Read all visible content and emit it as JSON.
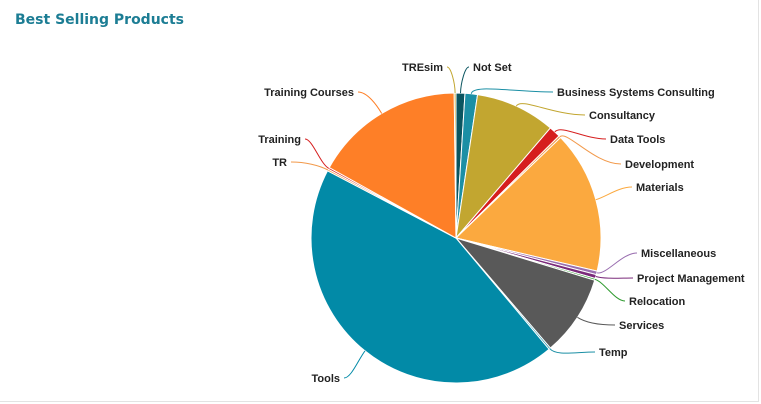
{
  "widget": {
    "title": "Best Selling Products"
  },
  "chart_data": {
    "type": "pie",
    "title": "Best Selling Products",
    "start_angle_deg": 0,
    "slices": [
      {
        "label": "Not Set",
        "value": 1.0,
        "color": "#0a5560"
      },
      {
        "label": "Business Systems Consulting",
        "value": 1.4,
        "color": "#1b8fa5"
      },
      {
        "label": "Consultancy",
        "value": 9.0,
        "color": "#c2a630"
      },
      {
        "label": "Data Tools",
        "value": 1.3,
        "color": "#d61e1e"
      },
      {
        "label": "Development",
        "value": 0.25,
        "color": "#f2994a"
      },
      {
        "label": "Materials",
        "value": 16.0,
        "color": "#fba93f"
      },
      {
        "label": "Miscellaneous",
        "value": 0.4,
        "color": "#9a6fb0"
      },
      {
        "label": "Project Management",
        "value": 0.45,
        "color": "#7a2a7a"
      },
      {
        "label": "Relocation",
        "value": 0.2,
        "color": "#2e9a2e"
      },
      {
        "label": "Services",
        "value": 9.1,
        "color": "#595959"
      },
      {
        "label": "Temp",
        "value": 0.2,
        "color": "#1b8fa5"
      },
      {
        "label": "Tools",
        "value": 44.2,
        "color": "#028aa7"
      },
      {
        "label": "TR",
        "value": 0.2,
        "color": "#f2994a"
      },
      {
        "label": "Training",
        "value": 0.2,
        "color": "#d61e1e"
      },
      {
        "label": "Training Courses",
        "value": 16.9,
        "color": "#fe7f27"
      },
      {
        "label": "TREsim",
        "value": 0.2,
        "color": "#c2a630"
      }
    ]
  }
}
